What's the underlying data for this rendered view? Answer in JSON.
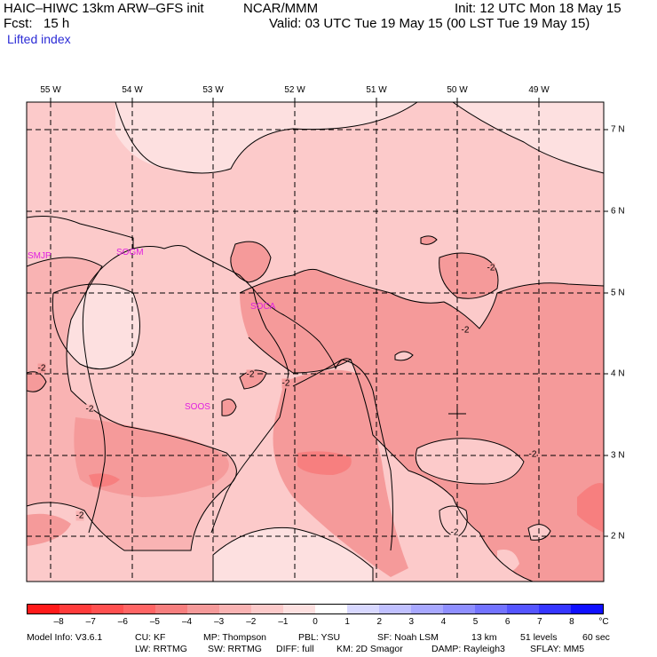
{
  "header": {
    "model_title": "HAIC–HIWC 13km ARW–GFS init",
    "org": "NCAR/MMM",
    "init": "Init: 12 UTC Mon 18 May 15",
    "fcst": "Fcst:   15 h",
    "valid": "Valid: 03 UTC Tue 19 May 15 (00 LST Tue 19 May 15)",
    "field": "Lifted index"
  },
  "map": {
    "lon_labels": [
      "55 W",
      "54 W",
      "53 W",
      "52 W",
      "51 W",
      "50 W",
      "49 W"
    ],
    "lat_labels": [
      "7 N",
      "6 N",
      "5 N",
      "4 N",
      "3 N",
      "2 N"
    ],
    "stations": [
      "SMJP",
      "SOGM",
      "SOCA",
      "SOOS"
    ],
    "contour_labels": [
      "-2",
      "-2",
      "-2",
      "-2",
      "-2",
      "-2",
      "-2",
      "-2",
      "-2"
    ]
  },
  "colorbar": {
    "colors": [
      "#ff1a1a",
      "#ff3b3b",
      "#ff5050",
      "#ff6565",
      "#f77f7f",
      "#f59a9a",
      "#f9b3b3",
      "#fccaca",
      "#fde0e0",
      "#ffffff",
      "#d8d8ff",
      "#c0c0ff",
      "#a8a8ff",
      "#8f8fff",
      "#7373ff",
      "#5555ff",
      "#3636ff",
      "#1010ff"
    ],
    "ticks": [
      "–8",
      "–7",
      "–6",
      "–5",
      "–4",
      "–3",
      "–2",
      "–1",
      "0",
      "1",
      "2",
      "3",
      "4",
      "5",
      "6",
      "7",
      "8"
    ],
    "unit": "°C"
  },
  "footer": {
    "line1": [
      "Model Info: V3.6.1",
      "CU: KF",
      "MP: Thompson",
      "PBL: YSU",
      "SF: Noah LSM",
      "13 km",
      "51 levels",
      "60 sec"
    ],
    "line2": [
      "LW: RRTMG",
      "SW: RRTMG",
      "DIFF: full",
      "KM: 2D Smagor",
      "DAMP: Rayleigh3",
      "SFLAY: MM5"
    ]
  }
}
